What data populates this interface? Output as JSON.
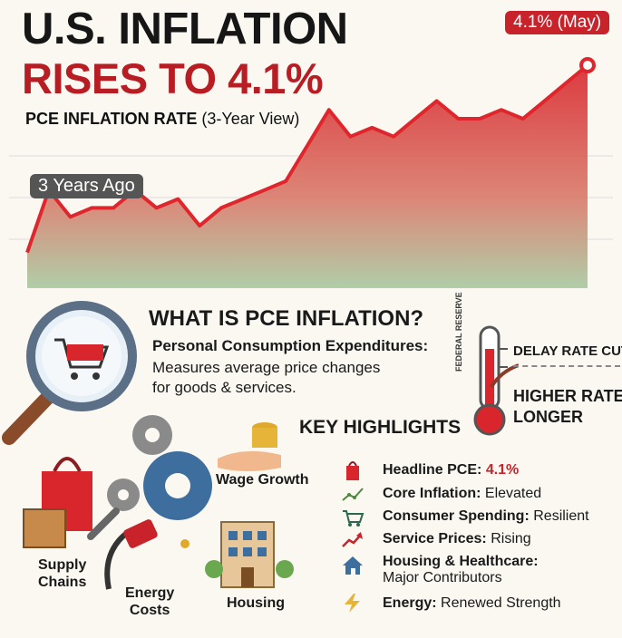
{
  "header": {
    "title_line1": "U.S. INFLATION",
    "title_line2": "RISES TO 4.1%",
    "subtitle_bold": "PCE INFLATION RATE",
    "subtitle_rest": "(3-Year View)"
  },
  "chart_data": {
    "type": "area",
    "title": "PCE INFLATION RATE (3-Year View)",
    "x": [
      0,
      1,
      2,
      3,
      4,
      5,
      6,
      7,
      8,
      9,
      10,
      11,
      12,
      13,
      14,
      15,
      16,
      17,
      18,
      19,
      20,
      21,
      22,
      23,
      24,
      25,
      26
    ],
    "series": [
      {
        "values": [
          2.0,
          2.7,
          2.4,
          2.5,
          2.5,
          2.7,
          2.5,
          2.6,
          2.3,
          2.5,
          2.6,
          2.7,
          2.8,
          3.2,
          3.6,
          3.3,
          3.4,
          3.3,
          3.5,
          3.7,
          3.5,
          3.5,
          3.6,
          3.5,
          3.7,
          3.9,
          4.1
        ]
      }
    ],
    "annotations": [
      {
        "label": "3 Years Ago",
        "x": 1
      },
      {
        "label": "4.1% (May)",
        "x": 26
      }
    ],
    "grid": true,
    "colors": {
      "high": "#d9262d",
      "low": "#a8c9a0"
    }
  },
  "pce": {
    "heading": "WHAT IS PCE INFLATION?",
    "def_title": "Personal Consumption Expenditures:",
    "def_line1": "Measures average price changes",
    "def_line2": "for goods & services."
  },
  "fed": {
    "thermometer_label": "FEDERAL RESERVE",
    "delay": "DELAY RATE CUTS",
    "higher_line1": "HIGHER RATES",
    "higher_line2": "LONGER"
  },
  "drivers": {
    "wage": "Wage Growth",
    "supply_line1": "Supply",
    "supply_line2": "Chains",
    "energy_line1": "Energy",
    "energy_line2": "Costs",
    "housing": "Housing"
  },
  "highlights": {
    "title": "KEY HIGHLIGHTS",
    "items": [
      {
        "key": "Headline PCE:",
        "value": "4.1%",
        "icon": "shopping-bag-icon"
      },
      {
        "key": "Core Inflation:",
        "value": "Elevated",
        "icon": "trend-dots-icon"
      },
      {
        "key": "Consumer Spending:",
        "value": "Resilient",
        "icon": "cart-icon"
      },
      {
        "key": "Service Prices:",
        "value": "Rising",
        "icon": "trend-arrow-icon"
      },
      {
        "key": "Housing & Healthcare:",
        "value": "Major Contributors",
        "icon": "house-icon"
      },
      {
        "key": "Energy:",
        "value": "Renewed Strength",
        "icon": "lightning-icon"
      }
    ]
  }
}
